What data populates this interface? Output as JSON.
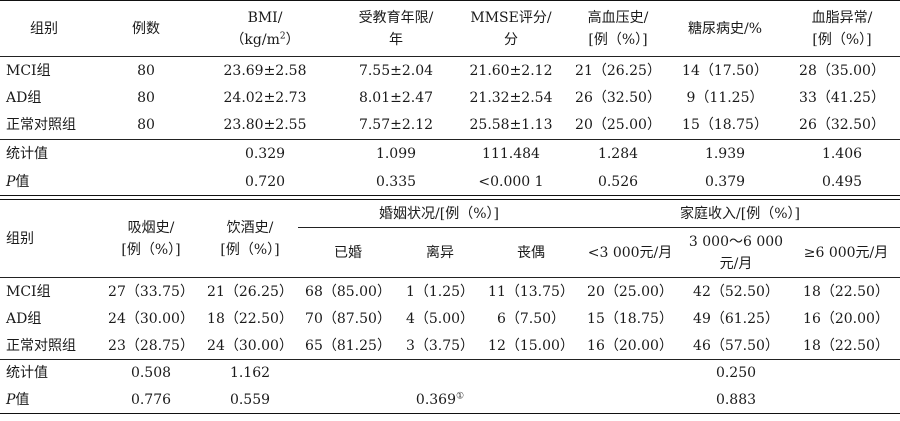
{
  "t1": {
    "headers": {
      "group": "组别",
      "n": "例数",
      "bmi_1": "BMI/",
      "bmi_2a": "（kg/m",
      "bmi_2sup": "2",
      "bmi_2b": "）",
      "edu_1": "受教育年限/",
      "edu_2": "年",
      "mmse_1": "MMSE评分/",
      "mmse_2": "分",
      "htn_1": "高血压史/",
      "htn_2": "[例（%）]",
      "dm": "糖尿病史/%",
      "lip_1": "血脂异常/",
      "lip_2": "[例（%）]"
    },
    "rows": [
      {
        "group": "MCI组",
        "n": "80",
        "bmi": "23.69±2.58",
        "edu": "7.55±2.04",
        "mmse": "21.60±2.12",
        "htn": "21（26.25）",
        "dm": "14（17.50）",
        "lip": "28（35.00）"
      },
      {
        "group": "AD组",
        "n": "80",
        "bmi": "24.02±2.73",
        "edu": "8.01±2.47",
        "mmse": "21.32±2.54",
        "htn": "26（32.50）",
        "dm": "9（11.25）",
        "lip": "33（41.25）"
      },
      {
        "group": "正常对照组",
        "n": "80",
        "bmi": "23.80±2.55",
        "edu": "7.57±2.12",
        "mmse": "25.58±1.13",
        "htn": "20（25.00）",
        "dm": "15（18.75）",
        "lip": "26（32.50）"
      }
    ],
    "stat": {
      "label": "统计值",
      "bmi": "0.329",
      "edu": "1.099",
      "mmse": "111.484",
      "htn": "1.284",
      "dm": "1.939",
      "lip": "1.406"
    },
    "p": {
      "label": "P",
      "label_suffix": "值",
      "bmi": "0.720",
      "edu": "0.335",
      "mmse": "<0.000 1",
      "htn": "0.526",
      "dm": "0.379",
      "lip": "0.495"
    }
  },
  "t2": {
    "headers": {
      "group": "组别",
      "smoke_1": "吸烟史/",
      "smoke_2": "[例（%）]",
      "drink_1": "饮酒史/",
      "drink_2": "[例（%）]",
      "marital": "婚姻状况/[例（%）]",
      "married": "已婚",
      "divorced": "离异",
      "widowed": "丧偶",
      "income": "家庭收入/[例（%）]",
      "inc_low": "<3 000元/月",
      "inc_mid_1": "3 000～6 000",
      "inc_mid_2": "元/月",
      "inc_high": "≥6 000元/月"
    },
    "rows": [
      {
        "group": "MCI组",
        "smoke": "27（33.75）",
        "drink": "21（26.25）",
        "married": "68（85.00）",
        "divorced": "1（1.25）",
        "widowed": "11（13.75）",
        "inc_low": "20（25.00）",
        "inc_mid": "42（52.50）",
        "inc_high": "18（22.50）"
      },
      {
        "group": "AD组",
        "smoke": "24（30.00）",
        "drink": "18（22.50）",
        "married": "70（87.50）",
        "divorced": "4（5.00）",
        "widowed": "6（7.50）",
        "inc_low": "15（18.75）",
        "inc_mid": "49（61.25）",
        "inc_high": "16（20.00）"
      },
      {
        "group": "正常对照组",
        "smoke": "23（28.75）",
        "drink": "24（30.00）",
        "married": "65（81.25）",
        "divorced": "3（3.75）",
        "widowed": "12（15.00）",
        "inc_low": "16（20.00）",
        "inc_mid": "46（57.50）",
        "inc_high": "18（22.50）"
      }
    ],
    "stat": {
      "label": "统计值",
      "smoke": "0.508",
      "drink": "1.162",
      "income": "0.250"
    },
    "p": {
      "label": "P",
      "label_suffix": "值",
      "smoke": "0.776",
      "drink": "0.559",
      "marital": "0.369",
      "marital_note": "①",
      "income": "0.883"
    }
  }
}
